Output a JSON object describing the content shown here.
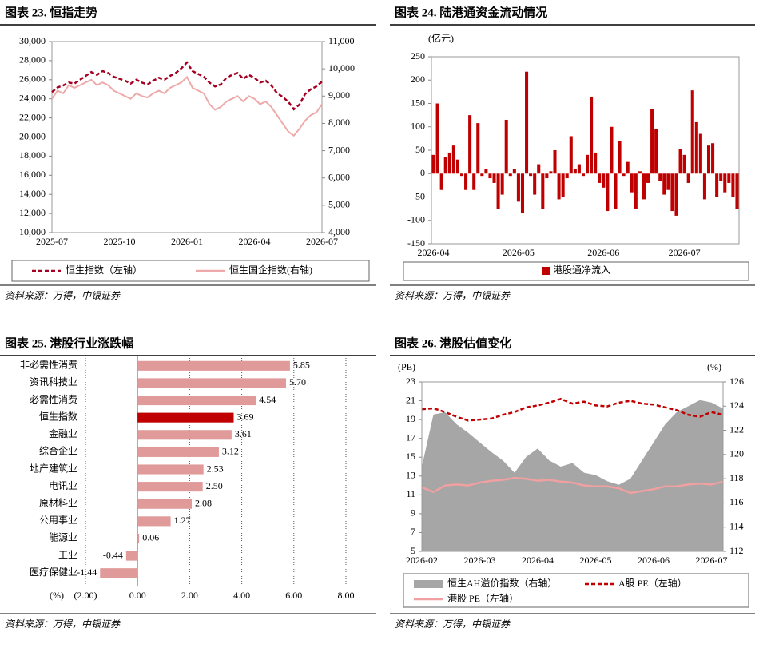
{
  "chart_data": [
    {
      "type": "line",
      "title": "图表 23. 恒指走势",
      "source": "资料来源：万得，中银证券",
      "categories": [
        "2025-07",
        null,
        null,
        null,
        null,
        null,
        null,
        null,
        null,
        null,
        null,
        null,
        "2025-10",
        null,
        null,
        null,
        null,
        null,
        null,
        null,
        null,
        null,
        null,
        null,
        "2026-01",
        null,
        null,
        null,
        null,
        null,
        null,
        null,
        null,
        null,
        null,
        null,
        "2026-04",
        null,
        null,
        null,
        null,
        null,
        null,
        null,
        null,
        null,
        null,
        null,
        "2026-07"
      ],
      "series": [
        {
          "name": "恒生指数（左轴）",
          "color": "#a50021",
          "dash": true,
          "axis": "y",
          "values": [
            24700,
            25200,
            25400,
            25700,
            25600,
            26000,
            26400,
            26800,
            26500,
            26900,
            26700,
            26300,
            26100,
            25900,
            25600,
            26000,
            25700,
            25500,
            25900,
            26200,
            26000,
            26400,
            26700,
            27200,
            27800,
            26900,
            26600,
            26300,
            25700,
            25300,
            25500,
            26200,
            26500,
            26700,
            26100,
            26500,
            26200,
            25700,
            25900,
            25400,
            24600,
            24200,
            23700,
            22900,
            23400,
            24500,
            25000,
            25300,
            25800
          ]
        },
        {
          "name": "恒生国企指数(右轴)",
          "color": "#eeaaaa",
          "dash": false,
          "axis": "y2",
          "values": [
            8900,
            9200,
            9100,
            9400,
            9300,
            9400,
            9500,
            9600,
            9400,
            9500,
            9400,
            9200,
            9100,
            9000,
            8900,
            9100,
            9000,
            8950,
            9100,
            9200,
            9100,
            9300,
            9400,
            9500,
            9700,
            9300,
            9200,
            9100,
            8700,
            8500,
            8600,
            8800,
            8900,
            9000,
            8800,
            9000,
            8900,
            8700,
            8800,
            8600,
            8300,
            8000,
            7700,
            7550,
            7800,
            8100,
            8300,
            8400,
            8700
          ]
        }
      ],
      "ylim": [
        10000,
        30000
      ],
      "yticks": [
        {
          "value": 10000,
          "label": "10,000"
        },
        {
          "value": 12000,
          "label": "12,000"
        },
        {
          "value": 14000,
          "label": "14,000"
        },
        {
          "value": 16000,
          "label": "16,000"
        },
        {
          "value": 18000,
          "label": "18,000"
        },
        {
          "value": 20000,
          "label": "20,000"
        },
        {
          "value": 22000,
          "label": "22,000"
        },
        {
          "value": 24000,
          "label": "24,000"
        },
        {
          "value": 26000,
          "label": "26,000"
        },
        {
          "value": 28000,
          "label": "28,000"
        },
        {
          "value": 30000,
          "label": "30,000"
        }
      ],
      "y2lim": [
        4000,
        11000
      ],
      "y2ticks": [
        {
          "value": 4000,
          "label": "4,000"
        },
        {
          "value": 5000,
          "label": "5,000"
        },
        {
          "value": 6000,
          "label": "6,000"
        },
        {
          "value": 7000,
          "label": "7,000"
        },
        {
          "value": 8000,
          "label": "8,000"
        },
        {
          "value": 9000,
          "label": "9,000"
        },
        {
          "value": 10000,
          "label": "10,000"
        },
        {
          "value": 11000,
          "label": "11,000"
        }
      ],
      "grid": false,
      "legend": "bottom"
    },
    {
      "type": "bar",
      "title": "图表 24. 陆港通资金流动情况",
      "source": "资料来源：万得，中银证券",
      "unit": "(亿元)",
      "categories": [
        "2026-04",
        null,
        null,
        null,
        null,
        null,
        null,
        null,
        null,
        null,
        null,
        null,
        null,
        null,
        null,
        null,
        null,
        null,
        null,
        null,
        null,
        "2026-05",
        null,
        null,
        null,
        null,
        null,
        null,
        null,
        null,
        null,
        null,
        null,
        null,
        null,
        null,
        null,
        null,
        null,
        null,
        null,
        null,
        "2026-06",
        null,
        null,
        null,
        null,
        null,
        null,
        null,
        null,
        null,
        null,
        null,
        null,
        null,
        null,
        null,
        null,
        null,
        null,
        null,
        "2026-07",
        null,
        null,
        null,
        null,
        null,
        null,
        null,
        null,
        null,
        null,
        null,
        null,
        null
      ],
      "series": [
        {
          "name": "港股通净流入",
          "color": "#c00000",
          "values": [
            40,
            150,
            -35,
            35,
            45,
            60,
            30,
            -5,
            -35,
            125,
            -35,
            108,
            -5,
            10,
            -10,
            -20,
            -75,
            -45,
            115,
            -5,
            10,
            -60,
            -85,
            218,
            -5,
            -45,
            20,
            -75,
            -10,
            5,
            50,
            -55,
            -50,
            -10,
            80,
            10,
            20,
            -5,
            40,
            163,
            45,
            -20,
            -30,
            -80,
            100,
            -75,
            70,
            -5,
            25,
            -40,
            -75,
            5,
            -55,
            -20,
            138,
            95,
            -15,
            -45,
            -35,
            -80,
            -90,
            53,
            40,
            -20,
            178,
            110,
            85,
            -55,
            60,
            65,
            -50,
            -15,
            -40,
            -20,
            -50,
            -75
          ]
        }
      ],
      "ylim": [
        -150,
        250
      ],
      "yticks": [
        -150,
        -100,
        -50,
        0,
        50,
        100,
        150,
        200,
        250
      ],
      "grid": false,
      "legend": "bottom"
    },
    {
      "type": "barh",
      "title": "图表 25. 港股行业涨跌幅",
      "source": "资料来源：万得，中银证券",
      "unit": "(%)",
      "categories": [
        "非必需性消费",
        "资讯科技业",
        "必需性消费",
        "恒生指数",
        "金融业",
        "综合企业",
        "地产建筑业",
        "电讯业",
        "原材料业",
        "公用事业",
        "能源业",
        "工业",
        "医疗保健业"
      ],
      "values": [
        5.85,
        5.7,
        4.54,
        3.69,
        3.61,
        3.12,
        2.53,
        2.5,
        2.08,
        1.27,
        0.06,
        -0.44,
        -1.44
      ],
      "value_labels": [
        "5.85",
        "5.70",
        "4.54",
        "3.69",
        "3.61",
        "3.12",
        "2.53",
        "2.50",
        "2.08",
        "1.27",
        "0.06",
        "-0.44",
        "-1.44"
      ],
      "colors": [
        "#e09a9a",
        "#e09a9a",
        "#e09a9a",
        "#c00000",
        "#e09a9a",
        "#e09a9a",
        "#e09a9a",
        "#e09a9a",
        "#e09a9a",
        "#e09a9a",
        "#e09a9a",
        "#e09a9a",
        "#e09a9a"
      ],
      "xlim": [
        -2,
        8
      ],
      "xticks": [
        {
          "value": -2,
          "label": "(2.00)"
        },
        {
          "value": 0,
          "label": "0.00"
        },
        {
          "value": 2,
          "label": "2.00"
        },
        {
          "value": 4,
          "label": "4.00"
        },
        {
          "value": 6,
          "label": "6.00"
        },
        {
          "value": 8,
          "label": "8.00"
        }
      ],
      "negative_color": "#e00000",
      "grid": true
    },
    {
      "type": "combo",
      "title": "图表 26. 港股估值变化",
      "source": "资料来源：万得，中银证券",
      "unit": "(PE)",
      "unit2": "(%)",
      "categories": [
        "2026-02",
        null,
        null,
        null,
        null,
        "2026-03",
        null,
        null,
        null,
        null,
        "2026-04",
        null,
        null,
        null,
        null,
        "2026-05",
        null,
        null,
        null,
        null,
        "2026-06",
        null,
        null,
        null,
        null,
        "2026-07",
        null
      ],
      "series": [
        {
          "name": "恒生AH溢价指数（右轴）",
          "type": "area",
          "axis": "y2",
          "color": "#a6a6a6",
          "values": [
            119,
            123.3,
            123.5,
            122.5,
            121.8,
            121,
            120.2,
            119.5,
            118.5,
            119.8,
            120.5,
            119.5,
            119,
            119.3,
            118.5,
            118.3,
            117.8,
            117.5,
            118,
            119.5,
            121,
            122.5,
            123.5,
            124,
            124.5,
            124.3,
            123.8
          ]
        },
        {
          "name": "A股 PE（左轴）",
          "type": "line",
          "dash": true,
          "axis": "y",
          "color": "#c00000",
          "values": [
            20.1,
            20.2,
            19.8,
            19.3,
            18.9,
            19,
            19.1,
            19.5,
            19.8,
            20.3,
            20.5,
            20.8,
            21.2,
            20.7,
            20.9,
            20.5,
            20.4,
            20.8,
            21,
            20.7,
            20.6,
            20.3,
            20,
            19.5,
            19.3,
            19.8,
            19.5
          ]
        },
        {
          "name": "港股 PE（左轴）",
          "type": "line",
          "dash": false,
          "axis": "y",
          "color": "#f0a0a0",
          "values": [
            11.8,
            11.3,
            12,
            12.1,
            12,
            12.3,
            12.5,
            12.6,
            12.8,
            12.7,
            12.5,
            12.6,
            12.4,
            12.3,
            12,
            11.9,
            11.9,
            11.7,
            11.2,
            11.4,
            11.6,
            11.9,
            11.9,
            12.1,
            12.2,
            12.1,
            12.4
          ]
        }
      ],
      "ylim": [
        5,
        23
      ],
      "yticks": [
        5,
        7,
        9,
        11,
        13,
        15,
        17,
        19,
        21,
        23
      ],
      "y2lim": [
        112,
        126
      ],
      "y2ticks": [
        112,
        114,
        116,
        118,
        120,
        122,
        124,
        126
      ],
      "grid": false,
      "legend": "bottom"
    }
  ]
}
